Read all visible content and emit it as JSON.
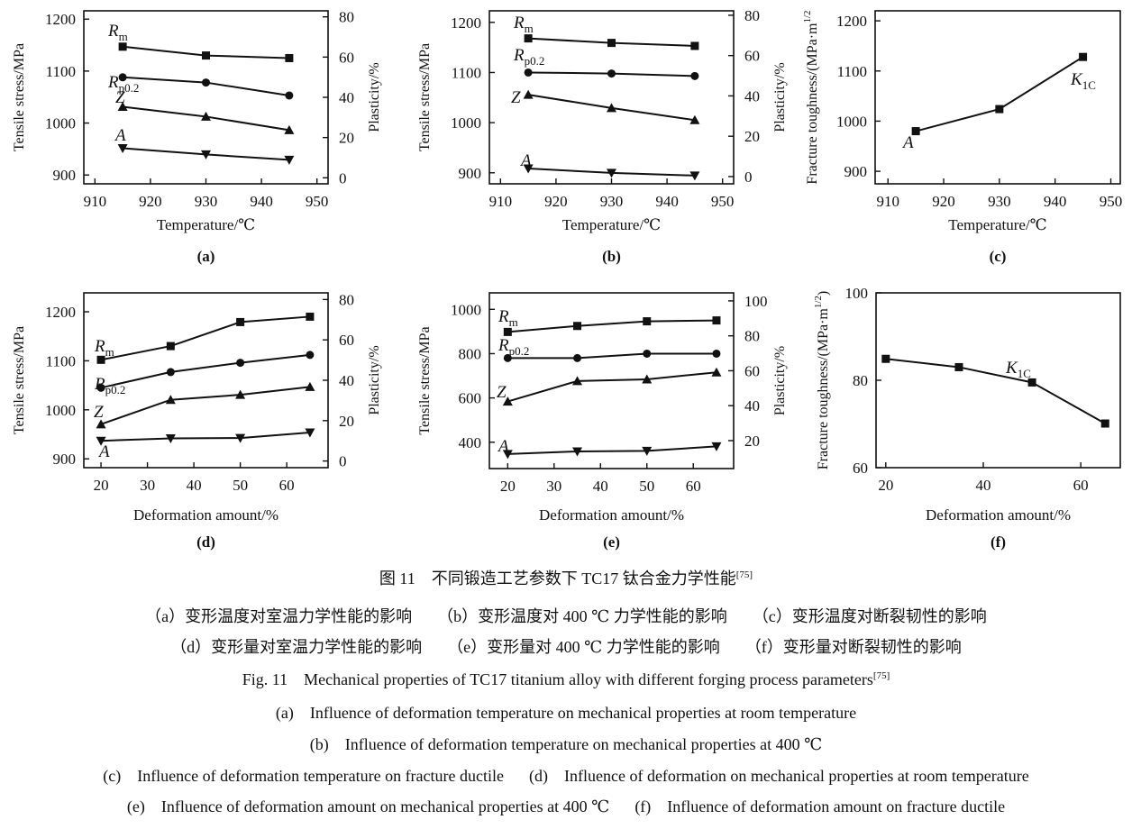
{
  "colors": {
    "line": "#111111",
    "background": "#ffffff"
  },
  "chart_data": [
    {
      "panel": "(a)",
      "type": "line",
      "xlabel": "Temperature/℃",
      "ylabel": "Tensile stress/MPa",
      "y2label": "Plasticity/%",
      "xlim": [
        908,
        952
      ],
      "ylim": [
        883,
        1216
      ],
      "y2lim": [
        -3,
        83
      ],
      "xticks": [
        910,
        920,
        930,
        940,
        950
      ],
      "yticks": [
        900,
        1000,
        1100,
        1200
      ],
      "y2ticks": [
        0,
        20,
        40,
        60,
        80
      ],
      "grid": false,
      "x": [
        915,
        930,
        945
      ],
      "series": [
        {
          "name": "Rm",
          "label": {
            "main": "R",
            "sub": "m"
          },
          "axis": "left",
          "marker": "square",
          "values": [
            1147,
            1130,
            1125
          ]
        },
        {
          "name": "Rp0.2",
          "label": {
            "main": "R",
            "sub": "p0.2"
          },
          "axis": "left",
          "marker": "circle",
          "values": [
            1088,
            1078,
            1053
          ]
        },
        {
          "name": "Z",
          "label": {
            "main": "Z",
            "sub": ""
          },
          "axis": "right",
          "marker": "triangle-up",
          "values": [
            35.3,
            30.4,
            23.7
          ]
        },
        {
          "name": "A",
          "label": {
            "main": "A",
            "sub": ""
          },
          "axis": "right",
          "marker": "triangle-down",
          "values": [
            14.7,
            11.6,
            8.9
          ]
        }
      ]
    },
    {
      "panel": "(b)",
      "type": "line",
      "xlabel": "Temperature/℃",
      "ylabel": "Tensile stress/MPa",
      "y2label": "Plasticity/%",
      "xlim": [
        908,
        952
      ],
      "ylim": [
        878,
        1223
      ],
      "y2lim": [
        -3.6,
        82.2
      ],
      "xticks": [
        910,
        920,
        930,
        940,
        950
      ],
      "yticks": [
        900,
        1000,
        1100,
        1200
      ],
      "y2ticks": [
        0,
        20,
        40,
        60,
        80
      ],
      "grid": false,
      "x": [
        915,
        930,
        945
      ],
      "series": [
        {
          "name": "Rm",
          "label": {
            "main": "R",
            "sub": "m"
          },
          "axis": "left",
          "marker": "square",
          "values": [
            1168,
            1159,
            1153
          ]
        },
        {
          "name": "Rp0.2",
          "label": {
            "main": "R",
            "sub": "p0.2"
          },
          "axis": "left",
          "marker": "circle",
          "values": [
            1100,
            1098,
            1093
          ]
        },
        {
          "name": "Z",
          "label": {
            "main": "Z",
            "sub": ""
          },
          "axis": "right",
          "marker": "triangle-up",
          "values": [
            40.6,
            34,
            28
          ]
        },
        {
          "name": "A",
          "label": {
            "main": "A",
            "sub": ""
          },
          "axis": "right",
          "marker": "triangle-down",
          "values": [
            4,
            1.8,
            0.5
          ]
        }
      ]
    },
    {
      "panel": "(c)",
      "type": "line",
      "xlabel": "Temperature/℃",
      "ylabel": "Fracture toughness/(MPa·m",
      "ylabel_sup": "1/2",
      "xlim": [
        907.7,
        951.7
      ],
      "ylim": [
        875,
        1220
      ],
      "xticks": [
        910,
        920,
        930,
        940,
        950
      ],
      "yticks": [
        900,
        1000,
        1100,
        1200
      ],
      "grid": false,
      "x": [
        915,
        930,
        945
      ],
      "point_labels": [
        {
          "main": "A",
          "sub": ""
        }
      ],
      "series": [
        {
          "name": "K1C",
          "label": {
            "main": "K",
            "sub": "1C"
          },
          "axis": "left",
          "marker": "square",
          "values": [
            980,
            1024,
            1128
          ]
        }
      ]
    },
    {
      "panel": "(d)",
      "type": "line",
      "xlabel": "Deformation amount/%",
      "ylabel": "Tensile stress/MPa",
      "y2label": "Plasticity/%",
      "xlim": [
        16.3,
        68.9
      ],
      "ylim": [
        882,
        1238.6
      ],
      "y2lim": [
        -3.3,
        83.3
      ],
      "xticks": [
        20,
        30,
        40,
        50,
        60
      ],
      "yticks": [
        900,
        1000,
        1100,
        1200
      ],
      "y2ticks": [
        0,
        20,
        40,
        60,
        80
      ],
      "grid": false,
      "x": [
        20,
        35,
        50,
        65
      ],
      "series": [
        {
          "name": "Rm",
          "label": {
            "main": "R",
            "sub": "m"
          },
          "axis": "left",
          "marker": "square",
          "values": [
            1102,
            1130,
            1179,
            1190
          ]
        },
        {
          "name": "Rp0.2",
          "label": {
            "main": "R",
            "sub": "p0.2"
          },
          "axis": "left",
          "marker": "circle",
          "values": [
            1045,
            1077,
            1096,
            1112
          ]
        },
        {
          "name": "Z",
          "label": {
            "main": "Z",
            "sub": ""
          },
          "axis": "right",
          "marker": "triangle-up",
          "values": [
            18.2,
            30.3,
            32.8,
            36.7
          ]
        },
        {
          "name": "A",
          "label": {
            "main": "A",
            "sub": ""
          },
          "axis": "right",
          "marker": "triangle-down",
          "values": [
            10,
            11.2,
            11.4,
            14.1
          ]
        }
      ]
    },
    {
      "panel": "(e)",
      "type": "line",
      "xlabel": "Deformation amount/%",
      "ylabel": "Tensile stress/MPa",
      "y2label": "Plasticity/%",
      "xlim": [
        16.05,
        68.7
      ],
      "ylim": [
        281,
        1074.5
      ],
      "y2lim": [
        4,
        104.6
      ],
      "xticks": [
        20,
        30,
        40,
        50,
        60
      ],
      "yticks": [
        400,
        600,
        800,
        1000
      ],
      "y2ticks": [
        20,
        40,
        60,
        80,
        100
      ],
      "grid": false,
      "x": [
        20,
        35,
        50,
        65
      ],
      "series": [
        {
          "name": "Rm",
          "label": {
            "main": "R",
            "sub": "m"
          },
          "axis": "left",
          "marker": "square",
          "values": [
            898,
            925,
            946,
            950
          ]
        },
        {
          "name": "Rp0.2",
          "label": {
            "main": "R",
            "sub": "p0.2"
          },
          "axis": "left",
          "marker": "circle",
          "values": [
            780,
            780,
            800,
            800
          ]
        },
        {
          "name": "Z",
          "label": {
            "main": "Z",
            "sub": ""
          },
          "axis": "right",
          "marker": "triangle-up",
          "values": [
            42.4,
            54.1,
            55.1,
            59.1
          ]
        },
        {
          "name": "A",
          "label": {
            "main": "A",
            "sub": ""
          },
          "axis": "right",
          "marker": "triangle-down",
          "values": [
            12.3,
            13.8,
            14.1,
            16.7
          ]
        }
      ]
    },
    {
      "panel": "(f)",
      "type": "line",
      "xlabel": "Deformation amount/%",
      "ylabel": "Fracture toughness/(MPa·m",
      "ylabel_sup": "1/2",
      "ylabel_end": ")",
      "xlim": [
        18,
        68.1
      ],
      "ylim": [
        60,
        100
      ],
      "xticks": [
        20,
        40,
        60
      ],
      "yticks": [
        60,
        80,
        100
      ],
      "grid": false,
      "x": [
        20,
        35,
        50,
        65
      ],
      "series": [
        {
          "name": "K1C",
          "label": {
            "main": "K",
            "sub": "1C"
          },
          "axis": "left",
          "marker": "square",
          "values": [
            84.9,
            83,
            79.5,
            70.1
          ]
        }
      ]
    }
  ],
  "caption": {
    "cn_title": "图 11　不同锻造工艺参数下 TC17 钛合金力学性能",
    "cn_ref": "[75]",
    "cn_lines": [
      [
        "（a）变形温度对室温力学性能的影响",
        "（b）变形温度对 400 ℃ 力学性能的影响",
        "（c）变形温度对断裂韧性的影响"
      ],
      [
        "（d）变形量对室温力学性能的影响",
        "（e）变形量对 400 ℃ 力学性能的影响",
        "（f）变形量对断裂韧性的影响"
      ]
    ],
    "en_title": "Fig. 11　Mechanical properties of TC17 titanium alloy with different forging process parameters",
    "en_ref": "[75]",
    "en_lines": [
      [
        "(a)　Influence of deformation temperature on mechanical properties at room temperature"
      ],
      [
        "(b)　Influence of deformation temperature on mechanical properties at 400 ℃"
      ],
      [
        "(c)　Influence of deformation temperature on fracture ductile",
        "(d)　Influence of deformation on mechanical properties at room temperature"
      ],
      [
        "(e)　Influence of deformation amount on mechanical properties at 400 ℃",
        "(f)　Influence of deformation amount on fracture ductile"
      ]
    ]
  }
}
